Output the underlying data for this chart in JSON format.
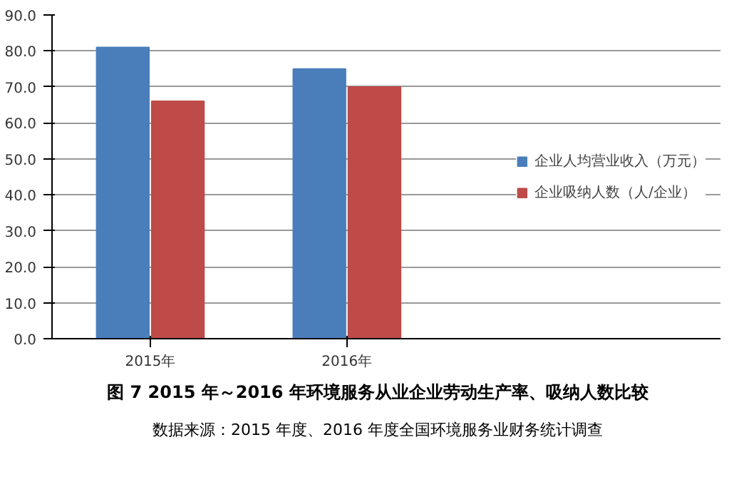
{
  "chart_data": {
    "type": "bar",
    "title": "图 7 2015 年～2016 年环境服务从业企业劳动生产率、吸纳人数比较",
    "annotations": [
      "数据来源：2015 年度、2016 年度全国环境服务业财务统计调查"
    ],
    "categories": [
      "2015年",
      "2016年"
    ],
    "series": [
      {
        "name": "企业人均营业收入（万元）",
        "color": "#4a7ebb",
        "values": [
          81,
          75
        ]
      },
      {
        "name": "企业吸纳人数（人/企业）",
        "color": "#be4b48",
        "values": [
          66,
          70
        ]
      }
    ],
    "ylim": [
      0,
      90
    ],
    "yticks": [
      {
        "value": 0,
        "label": "0.0"
      },
      {
        "value": 10,
        "label": "10.0"
      },
      {
        "value": 20,
        "label": "20.0"
      },
      {
        "value": 30,
        "label": "30.0"
      },
      {
        "value": 40,
        "label": "40.0"
      },
      {
        "value": 50,
        "label": "50.0"
      },
      {
        "value": 60,
        "label": "60.0"
      },
      {
        "value": 70,
        "label": "70.0"
      },
      {
        "value": 80,
        "label": "80.0"
      },
      {
        "value": 90,
        "label": "90.0"
      }
    ],
    "grid": "y",
    "legend": "right"
  }
}
